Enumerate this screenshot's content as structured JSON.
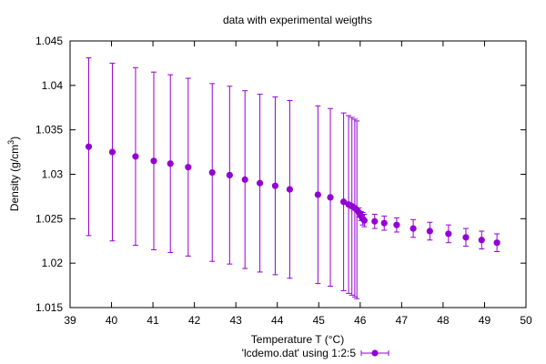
{
  "chart_data": {
    "type": "scatter",
    "title": "data with experimental weigths",
    "xlabel": "Temperature T (°C)",
    "ylabel": {
      "prefix": "Density (g/cm",
      "sup": "3",
      "suffix": ")"
    },
    "xlim": [
      39,
      50
    ],
    "ylim": [
      1.015,
      1.045
    ],
    "xticks": [
      "39",
      "40",
      "41",
      "42",
      "43",
      "44",
      "45",
      "46",
      "47",
      "48",
      "49",
      "50"
    ],
    "yticks": [
      "1.015",
      "1.02",
      "1.025",
      "1.03",
      "1.035",
      "1.04",
      "1.045"
    ],
    "grid": false,
    "legend_position": "bottom-center",
    "color": "#9400d3",
    "series": [
      {
        "name": "'lcdemo.dat' using 1:2:5",
        "points": [
          {
            "x": 39.45,
            "y": 1.0331,
            "err": 0.01
          },
          {
            "x": 40.02,
            "y": 1.0325,
            "err": 0.01
          },
          {
            "x": 40.58,
            "y": 1.032,
            "err": 0.01
          },
          {
            "x": 41.02,
            "y": 1.0315,
            "err": 0.01
          },
          {
            "x": 41.42,
            "y": 1.0312,
            "err": 0.01
          },
          {
            "x": 41.85,
            "y": 1.0308,
            "err": 0.01
          },
          {
            "x": 42.43,
            "y": 1.0302,
            "err": 0.01
          },
          {
            "x": 42.85,
            "y": 1.0299,
            "err": 0.01
          },
          {
            "x": 43.22,
            "y": 1.0294,
            "err": 0.01
          },
          {
            "x": 43.58,
            "y": 1.029,
            "err": 0.01
          },
          {
            "x": 43.95,
            "y": 1.0287,
            "err": 0.01
          },
          {
            "x": 44.3,
            "y": 1.0283,
            "err": 0.01
          },
          {
            "x": 44.98,
            "y": 1.0277,
            "err": 0.01
          },
          {
            "x": 45.28,
            "y": 1.0274,
            "err": 0.01
          },
          {
            "x": 45.6,
            "y": 1.0269,
            "err": 0.01
          },
          {
            "x": 45.72,
            "y": 1.0266,
            "err": 0.01
          },
          {
            "x": 45.8,
            "y": 1.0264,
            "err": 0.01
          },
          {
            "x": 45.87,
            "y": 1.0262,
            "err": 0.01
          },
          {
            "x": 45.92,
            "y": 1.026,
            "err": 0.01
          },
          {
            "x": 45.97,
            "y": 1.0257,
            "err": 0.0005
          },
          {
            "x": 46.02,
            "y": 1.0253,
            "err": 0.0005
          },
          {
            "x": 46.06,
            "y": 1.025,
            "err": 0.0007
          },
          {
            "x": 46.1,
            "y": 1.0248,
            "err": 0.0007
          },
          {
            "x": 46.35,
            "y": 1.0247,
            "err": 0.0008
          },
          {
            "x": 46.58,
            "y": 1.0245,
            "err": 0.0008
          },
          {
            "x": 46.88,
            "y": 1.0243,
            "err": 0.0008
          },
          {
            "x": 47.28,
            "y": 1.0239,
            "err": 0.001
          },
          {
            "x": 47.68,
            "y": 1.0236,
            "err": 0.001
          },
          {
            "x": 48.13,
            "y": 1.0233,
            "err": 0.001
          },
          {
            "x": 48.55,
            "y": 1.0229,
            "err": 0.001
          },
          {
            "x": 48.93,
            "y": 1.0226,
            "err": 0.001
          },
          {
            "x": 49.3,
            "y": 1.0223,
            "err": 0.001
          }
        ]
      }
    ]
  }
}
